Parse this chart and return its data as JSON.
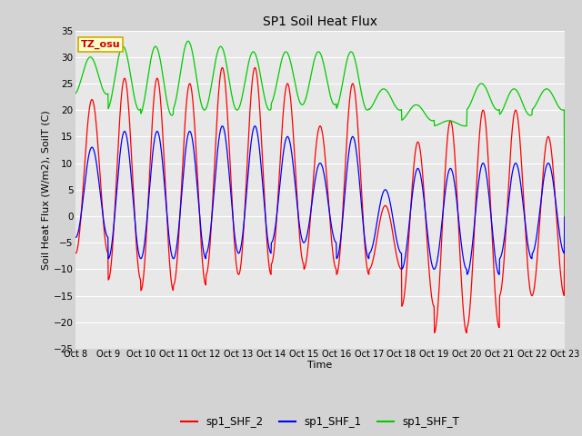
{
  "title": "SP1 Soil Heat Flux",
  "xlabel": "Time",
  "ylabel": "Soil Heat Flux (W/m2), SoilT (C)",
  "ylim": [
    -25,
    35
  ],
  "yticks": [
    -25,
    -20,
    -15,
    -10,
    -5,
    0,
    5,
    10,
    15,
    20,
    25,
    30,
    35
  ],
  "xtick_labels": [
    "Oct 8",
    "Oct 9",
    "Oct 10",
    "Oct 11",
    "Oct 12",
    "Oct 13",
    "Oct 14",
    "Oct 15",
    "Oct 16",
    "Oct 17",
    "Oct 18",
    "Oct 19",
    "Oct 20",
    "Oct 21",
    "Oct 22",
    "Oct 23"
  ],
  "legend_labels": [
    "sp1_SHF_2",
    "sp1_SHF_1",
    "sp1_SHF_T"
  ],
  "line_colors": [
    "#ff0000",
    "#0000ff",
    "#00cc00"
  ],
  "bg_color": "#d3d3d3",
  "plot_bg_color": "#e8e8e8",
  "grid_color": "#ffffff",
  "annotation_text": "TZ_osu",
  "annotation_color": "#cc0000",
  "annotation_bg": "#ffffcc",
  "annotation_border": "#ccaa00",
  "n_days": 15,
  "shf2_peaks": [
    22,
    26,
    26,
    25,
    28,
    28,
    25,
    17,
    25,
    2,
    14,
    18,
    20,
    20,
    15
  ],
  "shf2_troughs": [
    -7,
    -12,
    -14,
    -13,
    -11,
    -11,
    -9,
    -10,
    -11,
    -10,
    -17,
    -22,
    -21,
    -15,
    -15
  ],
  "shf1_peaks": [
    13,
    16,
    16,
    16,
    17,
    17,
    15,
    10,
    15,
    5,
    9,
    9,
    10,
    10,
    10
  ],
  "shf1_troughs": [
    -4,
    -8,
    -8,
    -8,
    -7,
    -7,
    -5,
    -5,
    -8,
    -7,
    -10,
    -10,
    -11,
    -8,
    -7
  ],
  "shfT_highs": [
    30,
    32,
    32,
    33,
    32,
    31,
    31,
    31,
    31,
    24,
    21,
    18,
    25,
    24,
    24
  ],
  "shfT_lows": [
    23,
    20,
    19,
    20,
    20,
    20,
    21,
    21,
    20,
    20,
    18,
    17,
    20,
    19,
    20
  ]
}
